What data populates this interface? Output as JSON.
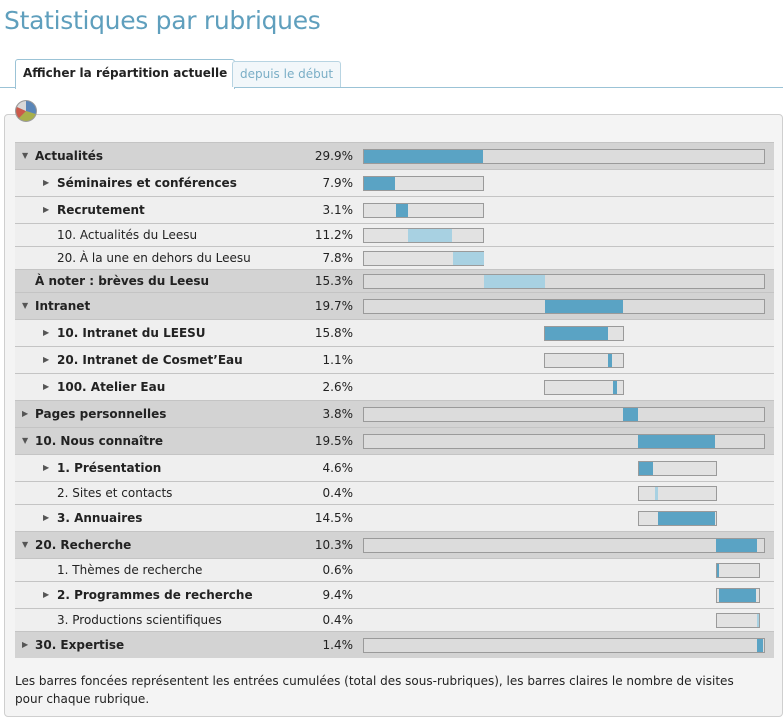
{
  "page": {
    "title": "Statistiques par rubriques",
    "footnote": "Les barres foncées représentent les entrées cumulées (total des sous-rubriques), les barres claires le nombre de visites pour chaque rubrique."
  },
  "tabs": [
    {
      "label": "Afficher la répartition actuelle",
      "active": true
    },
    {
      "label": "depuis le début",
      "active": false
    }
  ],
  "icons": {
    "chart": "pie-chart-icon"
  },
  "colors": {
    "dark_bar": "#5aa3c4",
    "light_bar": "#a8d1e2",
    "title": "#5f9fbd"
  },
  "rows": [
    {
      "label": "Actualités",
      "pct": "29.9%",
      "level": 0,
      "expanded": true,
      "has_children": true,
      "bar_kind": "dark",
      "share": 0.299
    },
    {
      "label": "Séminaires et conférences",
      "pct": "7.9%",
      "level": 1,
      "expanded": false,
      "has_children": true,
      "bar_kind": "dark",
      "share": 0.079
    },
    {
      "label": "Recrutement",
      "pct": "3.1%",
      "level": 1,
      "expanded": false,
      "has_children": true,
      "bar_kind": "dark",
      "share": 0.031
    },
    {
      "label": "10. Actualités du Leesu",
      "pct": "11.2%",
      "level": 1,
      "has_children": false,
      "bar_kind": "light",
      "share": 0.112
    },
    {
      "label": "20. À la une en dehors du Leesu",
      "pct": "7.8%",
      "level": 1,
      "has_children": false,
      "bar_kind": "light",
      "share": 0.078
    },
    {
      "label": "À noter : brèves du Leesu",
      "pct": "15.3%",
      "level": 0,
      "has_children": false,
      "bar_kind": "light",
      "share": 0.153
    },
    {
      "label": "Intranet",
      "pct": "19.7%",
      "level": 0,
      "expanded": true,
      "has_children": true,
      "bar_kind": "dark",
      "share": 0.197
    },
    {
      "label": "10. Intranet du LEESU",
      "pct": "15.8%",
      "level": 1,
      "expanded": false,
      "has_children": true,
      "bar_kind": "dark",
      "share": 0.158
    },
    {
      "label": "20. Intranet de Cosmet’Eau",
      "pct": "1.1%",
      "level": 1,
      "expanded": false,
      "has_children": true,
      "bar_kind": "dark",
      "share": 0.011
    },
    {
      "label": "100. Atelier Eau",
      "pct": "2.6%",
      "level": 1,
      "expanded": false,
      "has_children": true,
      "bar_kind": "dark",
      "share": 0.026
    },
    {
      "label": "Pages personnelles",
      "pct": "3.8%",
      "level": 0,
      "expanded": false,
      "has_children": true,
      "bar_kind": "dark",
      "share": 0.038
    },
    {
      "label": "10. Nous connaître",
      "pct": "19.5%",
      "level": 0,
      "expanded": true,
      "has_children": true,
      "bar_kind": "dark",
      "share": 0.195
    },
    {
      "label": "1. Présentation",
      "pct": "4.6%",
      "level": 1,
      "expanded": false,
      "has_children": true,
      "bar_kind": "dark",
      "share": 0.046
    },
    {
      "label": "2. Sites et contacts",
      "pct": "0.4%",
      "level": 1,
      "has_children": false,
      "bar_kind": "light",
      "share": 0.004
    },
    {
      "label": "3. Annuaires",
      "pct": "14.5%",
      "level": 1,
      "expanded": false,
      "has_children": true,
      "bar_kind": "dark",
      "share": 0.145
    },
    {
      "label": "20. Recherche",
      "pct": "10.3%",
      "level": 0,
      "expanded": true,
      "has_children": true,
      "bar_kind": "dark",
      "share": 0.103
    },
    {
      "label": "1. Thèmes de recherche",
      "pct": "0.6%",
      "level": 1,
      "has_children": false,
      "bar_kind": "dark",
      "share": 0.006
    },
    {
      "label": "2. Programmes de recherche",
      "pct": "9.4%",
      "level": 1,
      "expanded": false,
      "has_children": true,
      "bar_kind": "dark",
      "share": 0.094
    },
    {
      "label": "3. Productions scientifiques",
      "pct": "0.4%",
      "level": 1,
      "has_children": false,
      "bar_kind": "light",
      "share": 0.004
    },
    {
      "label": "30. Expertise",
      "pct": "1.4%",
      "level": 0,
      "expanded": false,
      "has_children": true,
      "bar_kind": "dark",
      "share": 0.014
    }
  ]
}
